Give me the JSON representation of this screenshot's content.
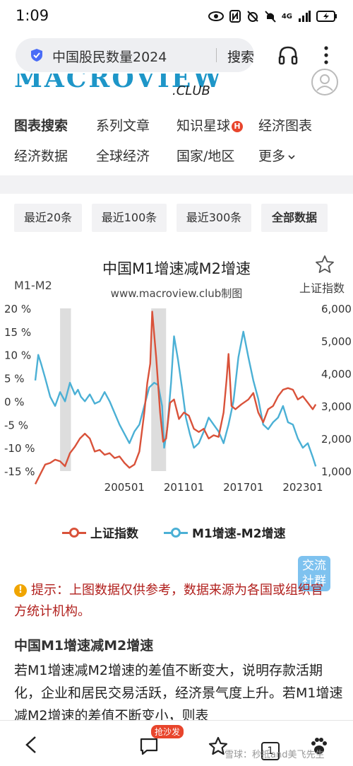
{
  "status_bar": {
    "time": "1:09",
    "network": "4G"
  },
  "browser": {
    "search_query": "中国股民数量2024",
    "search_button": "搜索"
  },
  "site": {
    "brand": "MACROVIEW",
    "brand_suffix": ".CLUB"
  },
  "nav": {
    "items": [
      "图表搜索",
      "系列文章",
      "知识星球",
      "经济图表",
      "经济数据",
      "全球经济",
      "国家/地区",
      "更多"
    ],
    "hot_badge": "H"
  },
  "filters": [
    "最近20条",
    "最近100条",
    "最近300条",
    "全部数据"
  ],
  "chart": {
    "title": "中国M1增速减M2增速",
    "watermark": "www.macroview.club制图",
    "y_left_label": "M1-M2",
    "y_right_label": "上证指数",
    "left_ticks": [
      "20 %",
      "15 %",
      "10 %",
      "5 %",
      "0 %",
      "-5 %",
      "-10 %",
      "-15 %"
    ],
    "right_ticks": [
      "6,000",
      "5,000",
      "4,000",
      "3,000",
      "2,000",
      "1,000"
    ],
    "x_ticks": [
      "200501",
      "201101",
      "201701",
      "202301"
    ]
  },
  "legend": {
    "series1": "上证指数",
    "series2": "M1增速-M2增速"
  },
  "fab": {
    "line1": "交流",
    "line2": "社群"
  },
  "notice": {
    "text": "提示：上图数据仅供参考，数据来源为各国或组织官方统计机构。"
  },
  "article": {
    "heading": "中国M1增速减M2增速",
    "paragraph": "若M1增速减M2增速的差值不断变大，说明存款活期化，企业和居民交易活跃，经济景气度上升。若M1增速减M2增速的差值不断变小，则表"
  },
  "bottom_bar": {
    "sofa_badge": "抢沙发",
    "tab_count": "1",
    "watermark": "雪球：秒抵and美飞先生"
  },
  "colors": {
    "accent": "#1e96c8",
    "series_index": "#d9523a",
    "series_m1m2": "#4bb0d5",
    "recession_band": "#dddddd",
    "notice_text": "#b1201d"
  },
  "chart_data": {
    "type": "line",
    "x_range": [
      1996.0,
      2024.5
    ],
    "y_left_range": [
      -15,
      20
    ],
    "y_right_range": [
      1000,
      6000
    ],
    "grid": false,
    "legend_position": "bottom",
    "shaded_periods": [
      [
        1998.5,
        1999.6
      ],
      [
        2007.7,
        2009.2
      ]
    ],
    "series": [
      {
        "name": "M1增速-M2增速",
        "axis": "left",
        "x": [
          1996.0,
          1996.3,
          1996.6,
          1997.0,
          1997.5,
          1998.0,
          1998.5,
          1999.0,
          1999.5,
          2000.0,
          2000.3,
          2000.6,
          2001.0,
          2001.5,
          2002.0,
          2002.5,
          2003.0,
          2003.5,
          2004.0,
          2004.5,
          2005.0,
          2005.5,
          2006.0,
          2006.5,
          2007.0,
          2007.5,
          2008.0,
          2008.4,
          2008.8,
          2009.0,
          2009.3,
          2009.7,
          2010.0,
          2010.4,
          2010.8,
          2011.2,
          2011.6,
          2012.0,
          2012.5,
          2013.0,
          2013.5,
          2014.0,
          2014.5,
          2015.0,
          2015.5,
          2016.0,
          2016.5,
          2017.0,
          2017.5,
          2018.0,
          2018.5,
          2019.0,
          2019.5,
          2020.0,
          2020.5,
          2021.0,
          2021.5,
          2022.0,
          2022.5,
          2023.0,
          2023.5,
          2024.0,
          2024.3
        ],
        "y": [
          4.5,
          10.0,
          8.0,
          5.0,
          1.0,
          -1.0,
          2.0,
          0.0,
          4.0,
          1.5,
          2.5,
          1.0,
          0.0,
          1.5,
          -0.5,
          0.0,
          2.0,
          0.0,
          -2.5,
          -5.0,
          -7.0,
          -9.0,
          -6.5,
          -5.0,
          -1.0,
          3.0,
          4.0,
          3.5,
          -1.0,
          -10.0,
          -6.0,
          4.0,
          14.0,
          9.0,
          3.0,
          -3.5,
          -7.0,
          -10.0,
          -9.0,
          -6.5,
          -3.5,
          -5.0,
          -6.5,
          -9.0,
          -5.0,
          0.0,
          9.5,
          15.0,
          9.5,
          4.5,
          0.5,
          -5.0,
          -6.0,
          -4.5,
          -3.5,
          -1.0,
          -4.5,
          -5.0,
          -8.0,
          -10.0,
          -9.0,
          -12.0,
          -14.0
        ]
      },
      {
        "name": "上证指数",
        "axis": "right",
        "x": [
          1996.0,
          1996.5,
          1997.0,
          1997.5,
          1998.0,
          1998.5,
          1999.0,
          1999.5,
          2000.0,
          2000.5,
          2001.0,
          2001.5,
          2002.0,
          2002.5,
          2003.0,
          2003.5,
          2004.0,
          2004.5,
          2005.0,
          2005.5,
          2006.0,
          2006.5,
          2007.0,
          2007.3,
          2007.6,
          2007.8,
          2008.2,
          2008.6,
          2008.9,
          2009.2,
          2009.6,
          2010.0,
          2010.5,
          2011.0,
          2011.5,
          2012.0,
          2012.5,
          2013.0,
          2013.5,
          2014.0,
          2014.5,
          2015.0,
          2015.3,
          2015.5,
          2015.8,
          2016.2,
          2016.8,
          2017.5,
          2018.0,
          2018.5,
          2019.0,
          2019.5,
          2020.0,
          2020.5,
          2021.0,
          2021.5,
          2022.0,
          2022.5,
          2023.0,
          2023.5,
          2024.0,
          2024.3
        ],
        "y": [
          600,
          900,
          1200,
          1250,
          1350,
          1300,
          1150,
          1550,
          1750,
          2000,
          2150,
          2000,
          1600,
          1650,
          1500,
          1550,
          1400,
          1450,
          1250,
          1100,
          1200,
          1600,
          2800,
          3700,
          4300,
          5900,
          4500,
          2800,
          1900,
          2000,
          3100,
          3200,
          2600,
          2800,
          2700,
          2300,
          2200,
          2300,
          2000,
          2100,
          2050,
          2800,
          3800,
          4600,
          3000,
          2900,
          3050,
          3200,
          3400,
          2800,
          2500,
          2900,
          3000,
          3300,
          3500,
          3550,
          3500,
          3200,
          3300,
          3100,
          2900,
          3050
        ]
      }
    ]
  }
}
